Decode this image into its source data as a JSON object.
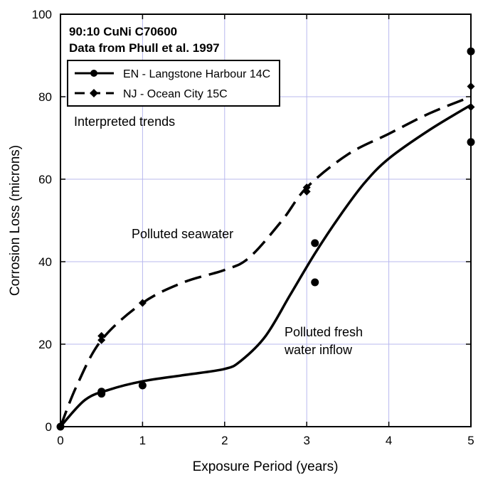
{
  "chart_data": {
    "type": "scatter",
    "title": "90:10 CuNi C70600",
    "subtitle": "Data from Phull et al. 1997",
    "xlabel": "Exposure Period (years)",
    "ylabel": "Corrosion Loss (microns)",
    "xlim": [
      0,
      5
    ],
    "ylim": [
      0,
      100
    ],
    "xticks": [
      "0",
      "1",
      "2",
      "3",
      "4",
      "5"
    ],
    "yticks": [
      "0",
      "20",
      "40",
      "60",
      "80",
      "100"
    ],
    "grid": true,
    "legend_position": "top-left",
    "series": [
      {
        "name": "EN - Langstone Harbour  14C",
        "marker": "circle",
        "line_style": "solid",
        "points": [
          [
            0,
            0
          ],
          [
            0.5,
            8.5
          ],
          [
            0.5,
            8
          ],
          [
            1,
            10
          ],
          [
            3.1,
            44.5
          ],
          [
            3.1,
            35
          ],
          [
            5,
            91
          ],
          [
            5,
            69
          ]
        ]
      },
      {
        "name": "NJ - Ocean City  15C",
        "marker": "diamond",
        "line_style": "dashed",
        "points": [
          [
            0,
            0
          ],
          [
            0.5,
            22
          ],
          [
            0.5,
            21
          ],
          [
            1,
            30
          ],
          [
            3,
            58
          ],
          [
            3,
            57
          ],
          [
            5,
            82.5
          ],
          [
            5,
            77.5
          ]
        ]
      }
    ],
    "trend_lines": [
      {
        "series": "EN - Langstone Harbour  14C",
        "style": "solid",
        "points": [
          [
            0,
            0
          ],
          [
            0.3,
            6.5
          ],
          [
            0.6,
            9
          ],
          [
            1,
            11
          ],
          [
            1.5,
            12.5
          ],
          [
            2,
            14
          ],
          [
            2.2,
            16
          ],
          [
            2.5,
            22
          ],
          [
            2.8,
            32
          ],
          [
            3.1,
            42
          ],
          [
            3.4,
            51
          ],
          [
            3.7,
            59
          ],
          [
            4,
            65
          ],
          [
            4.5,
            72
          ],
          [
            5,
            78
          ]
        ]
      },
      {
        "series": "NJ - Ocean City  15C",
        "style": "dashed",
        "points": [
          [
            0,
            0
          ],
          [
            0.2,
            10
          ],
          [
            0.5,
            21
          ],
          [
            1,
            30
          ],
          [
            1.5,
            35
          ],
          [
            2,
            38
          ],
          [
            2.3,
            41
          ],
          [
            2.7,
            50
          ],
          [
            3,
            58
          ],
          [
            3.5,
            66
          ],
          [
            4,
            71
          ],
          [
            4.5,
            76
          ],
          [
            5,
            80
          ]
        ]
      }
    ],
    "annotations": {
      "interpreted_trends": "Interpreted trends",
      "polluted_seawater": "Polluted seawater",
      "polluted_fresh_line1": "Polluted fresh",
      "polluted_fresh_line2": "water inflow"
    }
  }
}
